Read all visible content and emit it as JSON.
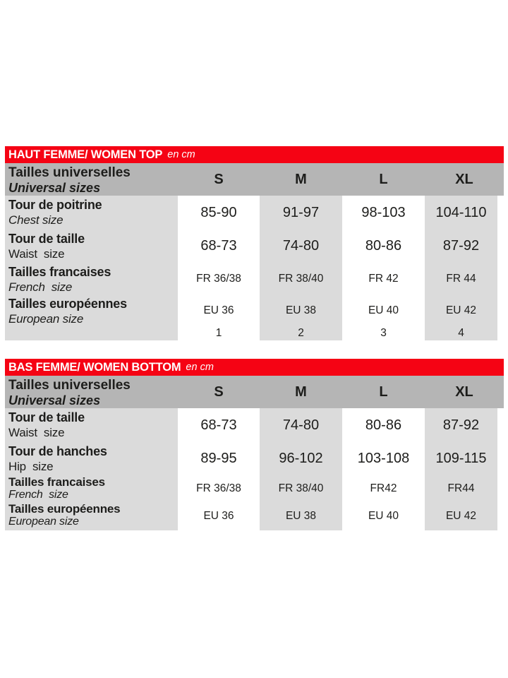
{
  "colors": {
    "red": "#f50314",
    "header_gray": "#b5b5b5",
    "body_gray": "#dbdbdb",
    "text": "#1d1d1b",
    "title_text": "#ffffff"
  },
  "chart_data": [
    {
      "type": "table",
      "title": "HAUT FEMME/ WOMEN TOP",
      "unit": "en cm",
      "header": {
        "fr": "Tailles universelles",
        "en": "Universal sizes"
      },
      "columns": [
        "S",
        "M",
        "L",
        "XL"
      ],
      "rows": [
        {
          "fr": "Tour de poitrine",
          "en": "Chest size",
          "values": [
            "85-90",
            "91-97",
            "98-103",
            "104-110"
          ]
        },
        {
          "fr": "Tour de taille",
          "en": "Waist  size",
          "values": [
            "68-73",
            "74-80",
            "80-86",
            "87-92"
          ]
        },
        {
          "fr": "Tailles francaises",
          "en": "French  size",
          "values": [
            "FR 36/38",
            "FR 38/40",
            "FR 42",
            "FR 44"
          ]
        },
        {
          "fr": "Tailles européennes",
          "en": "European size",
          "values": [
            "EU 36",
            "EU 38",
            "EU 40",
            "EU 42"
          ]
        },
        {
          "values": [
            "1",
            "2",
            "3",
            "4"
          ]
        }
      ]
    },
    {
      "type": "table",
      "title": "BAS FEMME/ WOMEN BOTTOM",
      "unit": "en cm",
      "header": {
        "fr": "Tailles universelles",
        "en": "Universal sizes"
      },
      "columns": [
        "S",
        "M",
        "L",
        "XL"
      ],
      "rows": [
        {
          "fr": "Tour de taille",
          "en": "Waist  size",
          "values": [
            "68-73",
            "74-80",
            "80-86",
            "87-92"
          ]
        },
        {
          "fr": "Tour de hanches",
          "en": "Hip  size",
          "values": [
            "89-95",
            "96-102",
            "103-108",
            "109-115"
          ]
        },
        {
          "fr": "Tailles francaises",
          "en": "French  size",
          "values": [
            "FR 36/38",
            "FR 38/40",
            "FR42",
            "FR44"
          ]
        },
        {
          "fr": "Tailles européennes",
          "en": "European size",
          "values": [
            "EU 36",
            "EU 38",
            "EU 40",
            "EU 42"
          ]
        }
      ]
    }
  ]
}
